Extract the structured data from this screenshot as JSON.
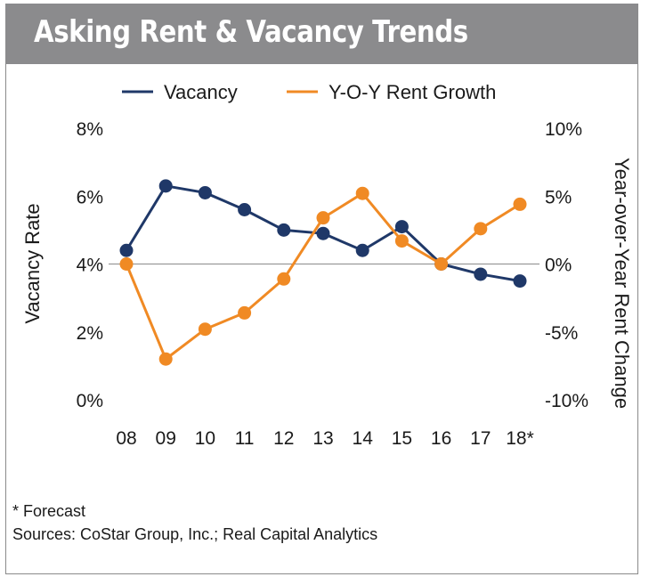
{
  "title": "Asking Rent & Vacancy Trends",
  "legend": {
    "vacancy_label": "Vacancy",
    "rent_label": "Y-O-Y Rent Growth"
  },
  "footnotes": {
    "forecast": "* Forecast",
    "sources": "Sources: CoStar Group, Inc.; Real Capital Analytics"
  },
  "colors": {
    "vacancy": "#1f3868",
    "rent": "#f08a24",
    "title_bar": "#8b8b8d",
    "zero_line": "#8a8a8a"
  },
  "chart_data": {
    "type": "line",
    "title": "Asking Rent & Vacancy Trends",
    "categories": [
      "08",
      "09",
      "10",
      "11",
      "12",
      "13",
      "14",
      "15",
      "16",
      "17",
      "18*"
    ],
    "left_axis": {
      "label": "Vacancy Rate",
      "ylim": [
        0,
        8
      ],
      "ticks": [
        {
          "value": 8,
          "label": "8%"
        },
        {
          "value": 6,
          "label": "6%"
        },
        {
          "value": 4,
          "label": "4%"
        },
        {
          "value": 2,
          "label": "2%"
        },
        {
          "value": 0,
          "label": "0%"
        }
      ]
    },
    "right_axis": {
      "label": "Year-over-Year Rent Change",
      "ylim": [
        -10,
        10
      ],
      "ticks": [
        {
          "value": 10,
          "label": "10%"
        },
        {
          "value": 5,
          "label": "5%"
        },
        {
          "value": 0,
          "label": "0%"
        },
        {
          "value": -5,
          "label": "-5%"
        },
        {
          "value": -10,
          "label": "-10%"
        }
      ]
    },
    "series": [
      {
        "name": "Vacancy",
        "axis": "left",
        "values": [
          4.4,
          6.3,
          6.1,
          5.6,
          5.0,
          4.9,
          4.4,
          5.1,
          4.0,
          3.7,
          3.5
        ]
      },
      {
        "name": "Y-O-Y Rent Growth",
        "axis": "right",
        "values": [
          0.0,
          -7.0,
          -4.8,
          -3.6,
          -1.1,
          3.4,
          5.2,
          1.7,
          0.0,
          2.6,
          4.4
        ]
      }
    ],
    "reference_line": {
      "axis": "right",
      "value": 0
    },
    "grid": false,
    "legend_position": "top"
  }
}
